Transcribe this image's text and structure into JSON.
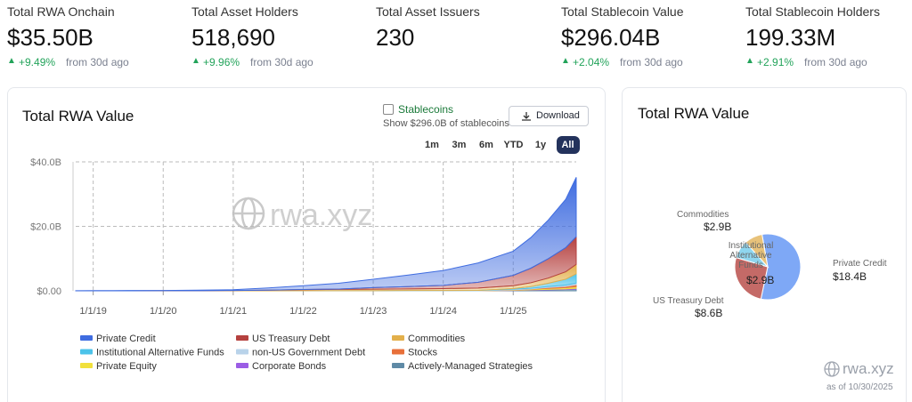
{
  "stats": [
    {
      "label": "Total RWA Onchain",
      "value": "$35.50B",
      "change": "+9.49%",
      "period": "from 30d ago"
    },
    {
      "label": "Total Asset Holders",
      "value": "518,690",
      "change": "+9.96%",
      "period": "from 30d ago"
    },
    {
      "label": "Total Asset Issuers",
      "value": "230"
    },
    {
      "label": "Total Stablecoin Value",
      "value": "$296.04B",
      "change": "+2.04%",
      "period": "from 30d ago"
    },
    {
      "label": "Total Stablecoin Holders",
      "value": "199.33M",
      "change": "+2.91%",
      "period": "from 30d ago"
    }
  ],
  "controls": {
    "stablecoins_toggle": "Stablecoins",
    "stablecoins_note": "Show $296.0B of stablecoins",
    "download": "Download",
    "ranges": [
      "1m",
      "3m",
      "6m",
      "YTD",
      "1y",
      "All"
    ],
    "active_range": 5
  },
  "chart_data": [
    {
      "type": "area",
      "title": "Total RWA Value",
      "stacked": true,
      "grid": true,
      "watermark": "rwa.xyz",
      "x": [
        2018.75,
        2019,
        2019.5,
        2020,
        2020.5,
        2021,
        2021.5,
        2022,
        2022.5,
        2023,
        2023.5,
        2024,
        2024.5,
        2025,
        2025.25,
        2025.5,
        2025.75,
        2025.9
      ],
      "xlim": [
        2018.75,
        2025.9
      ],
      "xticks": [
        {
          "value": 2019,
          "label": "1/1/19"
        },
        {
          "value": 2020,
          "label": "1/1/20"
        },
        {
          "value": 2021,
          "label": "1/1/21"
        },
        {
          "value": 2022,
          "label": "1/1/22"
        },
        {
          "value": 2023,
          "label": "1/1/23"
        },
        {
          "value": 2024,
          "label": "1/1/24"
        },
        {
          "value": 2025,
          "label": "1/1/25"
        }
      ],
      "ylim": [
        0,
        40
      ],
      "yticks": [
        {
          "value": 0,
          "label": "$0.00"
        },
        {
          "value": 20,
          "label": "$20.0B"
        },
        {
          "value": 40,
          "label": "$40.0B"
        }
      ],
      "series": [
        {
          "name": "Private Credit",
          "color": "#3f6ce0",
          "values": [
            0.05,
            0.06,
            0.08,
            0.1,
            0.15,
            0.25,
            0.7,
            1.2,
            1.8,
            2.6,
            3.6,
            4.6,
            6,
            7.5,
            9.5,
            12,
            15,
            18.4
          ]
        },
        {
          "name": "US Treasury Debt",
          "color": "#b5413f",
          "values": [
            0,
            0,
            0,
            0,
            0,
            0,
            0,
            0.05,
            0.1,
            0.5,
            0.7,
            1,
            1.8,
            3.2,
            4.5,
            6,
            7.5,
            8.6
          ]
        },
        {
          "name": "Commodities",
          "color": "#e3b04b",
          "values": [
            0,
            0,
            0.01,
            0.02,
            0.05,
            0.1,
            0.2,
            0.3,
            0.4,
            0.45,
            0.5,
            0.6,
            0.7,
            0.9,
            1.2,
            1.6,
            2.3,
            2.9
          ]
        },
        {
          "name": "Institutional Alternative Funds",
          "color": "#4cc3ea",
          "values": [
            0,
            0,
            0,
            0,
            0,
            0,
            0,
            0,
            0,
            0,
            0,
            0,
            0.05,
            0.2,
            0.5,
            1,
            1.8,
            2.9
          ]
        },
        {
          "name": "non-US Government Debt",
          "color": "#b9d3ea",
          "values": [
            0,
            0,
            0,
            0,
            0,
            0,
            0,
            0.05,
            0.05,
            0.05,
            0.1,
            0.1,
            0.1,
            0.2,
            0.2,
            0.3,
            0.4,
            0.5
          ]
        },
        {
          "name": "Stocks",
          "color": "#e8703a",
          "values": [
            0,
            0,
            0,
            0,
            0,
            0,
            0,
            0,
            0,
            0,
            0,
            0,
            0,
            0.05,
            0.1,
            0.3,
            0.4,
            0.6
          ]
        },
        {
          "name": "Private Equity",
          "color": "#f1e03c",
          "values": [
            0,
            0,
            0,
            0,
            0,
            0,
            0,
            0,
            0,
            0,
            0,
            0,
            0,
            0.1,
            0.2,
            0.3,
            0.4,
            0.5
          ]
        },
        {
          "name": "Corporate Bonds",
          "color": "#9b5de5",
          "values": [
            0,
            0,
            0,
            0,
            0,
            0,
            0,
            0,
            0,
            0,
            0,
            0,
            0,
            0.05,
            0.1,
            0.15,
            0.2,
            0.3
          ]
        },
        {
          "name": "Actively-Managed Strategies",
          "color": "#5f8aa6",
          "values": [
            0,
            0,
            0,
            0,
            0,
            0,
            0,
            0,
            0,
            0,
            0,
            0,
            0,
            0.1,
            0.2,
            0.3,
            0.4,
            0.5
          ]
        }
      ]
    },
    {
      "type": "pie",
      "title": "Total RWA Value",
      "footer_logo": "rwa.xyz",
      "as_of": "as of 10/30/2025",
      "categories": [
        "Private Credit",
        "US Treasury Debt",
        "Institutional Alternative Funds",
        "Commodities"
      ],
      "values": [
        18.4,
        8.6,
        2.9,
        2.9
      ],
      "value_labels": [
        "$18.4B",
        "$8.6B",
        "$2.9B",
        "$2.9B"
      ],
      "colors": [
        "#7ea8f6",
        "#c46a67",
        "#8fd6ef",
        "#e8c27a"
      ]
    }
  ]
}
